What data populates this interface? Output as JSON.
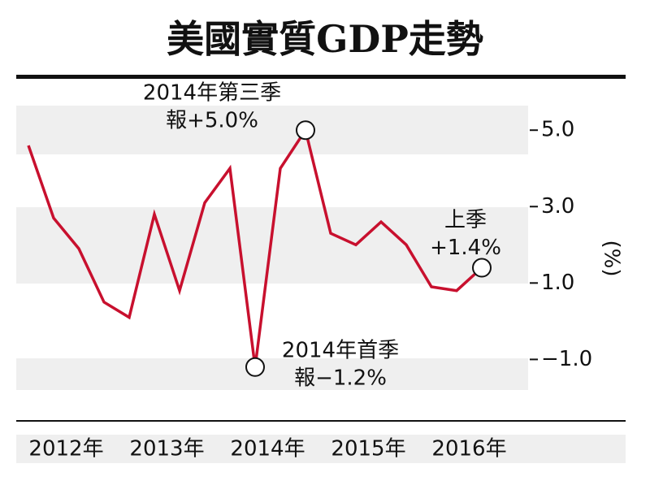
{
  "chart_data": {
    "type": "line",
    "title": "美國實質GDP走勢",
    "categories": [
      null,
      null,
      null,
      null,
      null,
      null,
      null,
      null,
      null,
      null,
      null,
      null,
      null,
      null,
      null,
      null,
      null,
      null,
      null
    ],
    "year_labels": [
      "2012年",
      "2013年",
      "2014年",
      "2015年",
      "2016年"
    ],
    "series": [
      {
        "name": null,
        "color": "#c8102e",
        "values": [
          4.6,
          2.7,
          1.9,
          0.5,
          0.1,
          2.8,
          0.8,
          3.1,
          4.0,
          -1.2,
          4.0,
          5.0,
          2.3,
          2.0,
          2.6,
          2.0,
          0.9,
          0.8,
          1.4
        ]
      }
    ],
    "ylim": [
      -1.8,
      5.6
    ],
    "yticks": [
      {
        "value": 5,
        "label": "5.0"
      },
      {
        "value": 3,
        "label": "3.0"
      },
      {
        "value": 1,
        "label": "1.0"
      },
      {
        "value": -1,
        "label": "−1.0"
      }
    ],
    "y_label": "(%)",
    "annotations": [
      {
        "index": 11,
        "lines": [
          "2014年第三季",
          "報+5.0%"
        ]
      },
      {
        "index": 9,
        "lines": [
          "2014年首季",
          "報−1.2%"
        ]
      },
      {
        "index": 18,
        "lines": [
          "上季",
          "+1.4%"
        ]
      }
    ]
  }
}
